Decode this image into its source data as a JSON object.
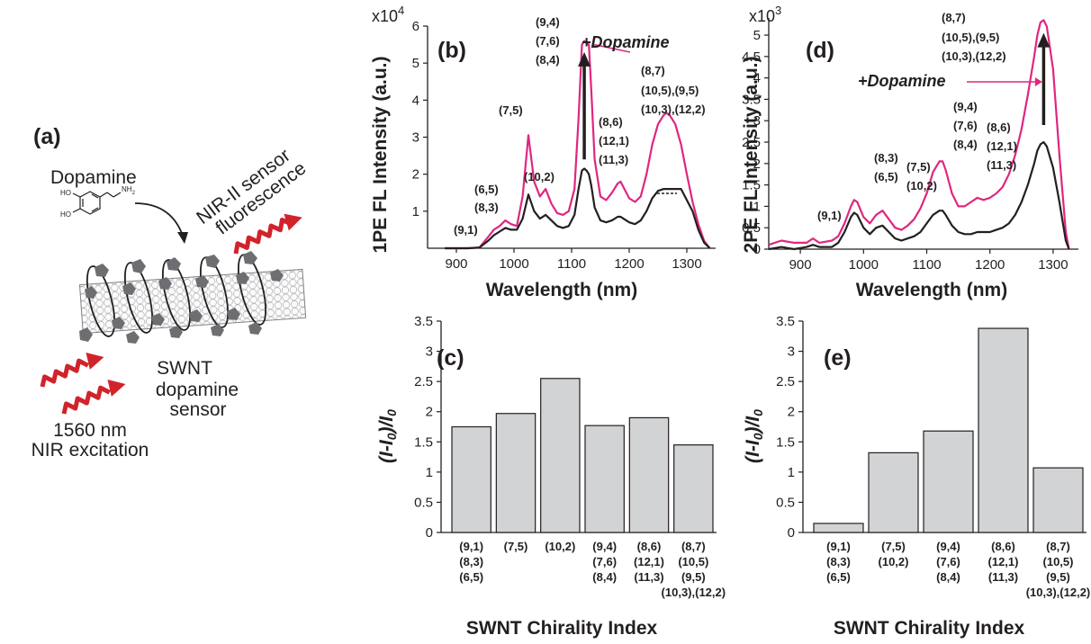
{
  "panel_a": {
    "letter": "(a)",
    "dopamine_label": "Dopamine",
    "molecule_labels": [
      "HO",
      "HO",
      "NH",
      "2"
    ],
    "emission_label_1": "NIR-II sensor",
    "emission_label_2": "fluorescence",
    "sensor_label_1": "SWNT",
    "sensor_label_2": "dopamine",
    "sensor_label_3": "sensor",
    "excitation_label_1": "1560 nm",
    "excitation_label_2": "NIR excitation",
    "colors": {
      "arrow_red": "#d1232a",
      "wrapper": "#6d6e71",
      "tube": "#f2f2f2"
    }
  },
  "panels": {
    "b": {
      "letter": "(b)",
      "multiplier_base": "x10",
      "multiplier_exp": "4",
      "ylabel": "1PE FL Intensity (a.u.)",
      "xlabel": "Wavelength (nm)",
      "callout": "+Dopamine",
      "peak_labels": [
        "(9,1)",
        "(6,5)",
        "(8,3)",
        "(7,5)",
        "(10,2)",
        "(9,4)",
        "(7,6)",
        "(8,4)",
        "(8,6)",
        "(12,1)",
        "(11,3)",
        "(8,7)",
        "(10,5),(9,5)",
        "(10,3),(12,2)"
      ]
    },
    "d": {
      "letter": "(d)",
      "multiplier_base": "x10",
      "multiplier_exp": "3",
      "ylabel": "2PE FL Intensity (a.u.)",
      "xlabel": "Wavelength (nm)",
      "callout": "+Dopamine",
      "peak_labels": [
        "(9,1)",
        "(8,3)",
        "(6,5)",
        "(7,5)",
        "(10,2)",
        "(9,4)",
        "(7,6)",
        "(8,4)",
        "(8,6)",
        "(12,1)",
        "(11,3)",
        "(8,7)",
        "(10,5),(9,5)",
        "(10,3),(12,2)"
      ]
    },
    "c": {
      "letter": "(c)",
      "ylabel": "(I-I0)/I0",
      "xlabel": "SWNT Chirality Index"
    },
    "e": {
      "letter": "(e)",
      "ylabel": "(I-I0)/I0",
      "xlabel": "SWNT Chirality Index"
    }
  },
  "chart_data": [
    {
      "id": "b",
      "type": "line",
      "xlabel": "Wavelength (nm)",
      "ylabel": "1PE FL Intensity (a.u.)",
      "y_multiplier": "x10^4",
      "xlim": [
        850,
        1350
      ],
      "ylim": [
        0,
        6
      ],
      "xticks": [
        900,
        1000,
        1100,
        1200,
        1300
      ],
      "yticks": [
        1,
        2,
        3,
        4,
        5,
        6
      ],
      "annotation": "+Dopamine",
      "series": [
        {
          "color": "#e0267f",
          "x": [
            880,
            900,
            920,
            940,
            955,
            965,
            975,
            985,
            995,
            1005,
            1015,
            1025,
            1035,
            1045,
            1055,
            1065,
            1075,
            1085,
            1095,
            1105,
            1112,
            1118,
            1122,
            1126,
            1130,
            1134,
            1140,
            1150,
            1160,
            1170,
            1180,
            1185,
            1190,
            1200,
            1210,
            1220,
            1230,
            1240,
            1250,
            1260,
            1265,
            1270,
            1280,
            1290,
            1300,
            1310,
            1320,
            1330,
            1340
          ],
          "y": [
            0,
            0,
            0,
            0.02,
            0.3,
            0.5,
            0.6,
            0.75,
            0.65,
            0.6,
            1.4,
            3.05,
            1.8,
            1.4,
            1.6,
            1.2,
            0.95,
            0.9,
            1.0,
            1.6,
            3.5,
            5.5,
            5.6,
            5.55,
            5.5,
            4.3,
            2.4,
            1.4,
            1.3,
            1.5,
            1.75,
            1.8,
            1.65,
            1.35,
            1.25,
            1.4,
            2.0,
            2.8,
            3.35,
            3.6,
            3.65,
            3.6,
            3.35,
            2.8,
            2.0,
            1.25,
            0.65,
            0.2,
            0
          ]
        },
        {
          "color": "#231f20",
          "x": [
            880,
            900,
            920,
            940,
            955,
            965,
            975,
            985,
            995,
            1005,
            1015,
            1025,
            1035,
            1045,
            1055,
            1065,
            1075,
            1085,
            1095,
            1105,
            1112,
            1118,
            1122,
            1126,
            1130,
            1134,
            1140,
            1150,
            1160,
            1170,
            1180,
            1185,
            1190,
            1200,
            1210,
            1220,
            1230,
            1240,
            1250,
            1260,
            1265,
            1270,
            1280,
            1290,
            1300,
            1310,
            1320,
            1330,
            1340
          ],
          "y": [
            0,
            0,
            0,
            0.02,
            0.2,
            0.35,
            0.45,
            0.55,
            0.5,
            0.5,
            0.8,
            1.45,
            1.0,
            0.8,
            0.9,
            0.75,
            0.6,
            0.55,
            0.6,
            0.9,
            1.6,
            2.1,
            2.15,
            2.1,
            2.0,
            1.7,
            1.1,
            0.75,
            0.7,
            0.75,
            0.85,
            0.85,
            0.8,
            0.7,
            0.65,
            0.75,
            1.0,
            1.35,
            1.55,
            1.6,
            1.6,
            1.6,
            1.6,
            1.6,
            1.3,
            1.0,
            0.5,
            0.15,
            0
          ]
        }
      ]
    },
    {
      "id": "d",
      "type": "line",
      "xlabel": "Wavelength (nm)",
      "ylabel": "2PE FL Intensity (a.u.)",
      "y_multiplier": "x10^3",
      "xlim": [
        850,
        1340
      ],
      "ylim": [
        0,
        5.4
      ],
      "xticks": [
        900,
        1000,
        1100,
        1200,
        1300
      ],
      "yticks": [
        0,
        0.5,
        1,
        1.5,
        2,
        2.5,
        3,
        3.5,
        4,
        4.5,
        5
      ],
      "annotation": "+Dopamine",
      "series": [
        {
          "color": "#e0267f",
          "x": [
            850,
            870,
            890,
            910,
            920,
            930,
            950,
            960,
            970,
            980,
            985,
            990,
            1000,
            1010,
            1020,
            1030,
            1040,
            1050,
            1060,
            1070,
            1080,
            1090,
            1100,
            1110,
            1120,
            1125,
            1130,
            1140,
            1150,
            1160,
            1170,
            1180,
            1190,
            1200,
            1210,
            1220,
            1230,
            1240,
            1250,
            1260,
            1270,
            1275,
            1280,
            1285,
            1290,
            1300,
            1310,
            1320,
            1325
          ],
          "y": [
            0.1,
            0.2,
            0.15,
            0.15,
            0.25,
            0.15,
            0.2,
            0.3,
            0.6,
            1.0,
            1.15,
            1.1,
            0.75,
            0.6,
            0.8,
            0.9,
            0.7,
            0.5,
            0.45,
            0.55,
            0.7,
            0.95,
            1.3,
            1.8,
            2.05,
            2.05,
            1.85,
            1.3,
            1.0,
            1.0,
            1.1,
            1.2,
            1.15,
            1.2,
            1.3,
            1.45,
            1.75,
            2.2,
            2.8,
            3.6,
            4.5,
            5.0,
            5.3,
            5.35,
            5.2,
            4.2,
            2.2,
            0.4,
            0
          ]
        },
        {
          "color": "#231f20",
          "x": [
            850,
            870,
            890,
            910,
            920,
            930,
            950,
            960,
            970,
            980,
            985,
            990,
            1000,
            1010,
            1020,
            1030,
            1040,
            1050,
            1060,
            1070,
            1080,
            1090,
            1100,
            1110,
            1120,
            1125,
            1130,
            1140,
            1150,
            1160,
            1170,
            1180,
            1190,
            1200,
            1210,
            1220,
            1230,
            1240,
            1250,
            1260,
            1270,
            1275,
            1280,
            1285,
            1290,
            1300,
            1310,
            1320,
            1325
          ],
          "y": [
            0,
            0.05,
            0,
            0.05,
            0.1,
            0.05,
            0.05,
            0.15,
            0.4,
            0.75,
            0.85,
            0.8,
            0.5,
            0.35,
            0.5,
            0.55,
            0.4,
            0.25,
            0.2,
            0.25,
            0.3,
            0.4,
            0.6,
            0.8,
            0.9,
            0.9,
            0.8,
            0.55,
            0.4,
            0.35,
            0.35,
            0.4,
            0.4,
            0.4,
            0.45,
            0.5,
            0.6,
            0.8,
            1.1,
            1.5,
            2.0,
            2.3,
            2.45,
            2.5,
            2.4,
            1.9,
            1.1,
            0.2,
            0
          ]
        }
      ]
    },
    {
      "id": "c",
      "type": "bar",
      "xlabel": "SWNT Chirality Index",
      "ylabel": "(I-I0)/I0",
      "ylim": [
        0,
        3.5
      ],
      "yticks": [
        0,
        0.5,
        1,
        1.5,
        2,
        2.5,
        3,
        3.5
      ],
      "categories": [
        [
          "(9,1)",
          "(8,3)",
          "(6,5)"
        ],
        [
          "(7,5)"
        ],
        [
          "(10,2)"
        ],
        [
          "(9,4)",
          "(7,6)",
          "(8,4)"
        ],
        [
          "(8,6)",
          "(12,1)",
          "(11,3)"
        ],
        [
          "(8,7)",
          "(10,5)",
          "(9,5)",
          "(10,3),(12,2)"
        ]
      ],
      "values": [
        1.75,
        1.97,
        2.55,
        1.77,
        1.9,
        1.45
      ],
      "bar_color": "#d1d3d4"
    },
    {
      "id": "e",
      "type": "bar",
      "xlabel": "SWNT Chirality Index",
      "ylabel": "(I-I0)/I0",
      "ylim": [
        0,
        3.5
      ],
      "yticks": [
        0,
        0.5,
        1,
        1.5,
        2,
        2.5,
        3,
        3.5
      ],
      "categories": [
        [
          "(9,1)",
          "(8,3)",
          "(6,5)"
        ],
        [
          "(7,5)",
          "(10,2)"
        ],
        [
          "(9,4)",
          "(7,6)",
          "(8,4)"
        ],
        [
          "(8,6)",
          "(12,1)",
          "(11,3)"
        ],
        [
          "(8,7)",
          "(10,5)",
          "(9,5)",
          "(10,3),(12,2)"
        ]
      ],
      "values": [
        0.15,
        1.32,
        1.68,
        3.38,
        1.07
      ],
      "bar_color": "#d1d3d4"
    }
  ]
}
